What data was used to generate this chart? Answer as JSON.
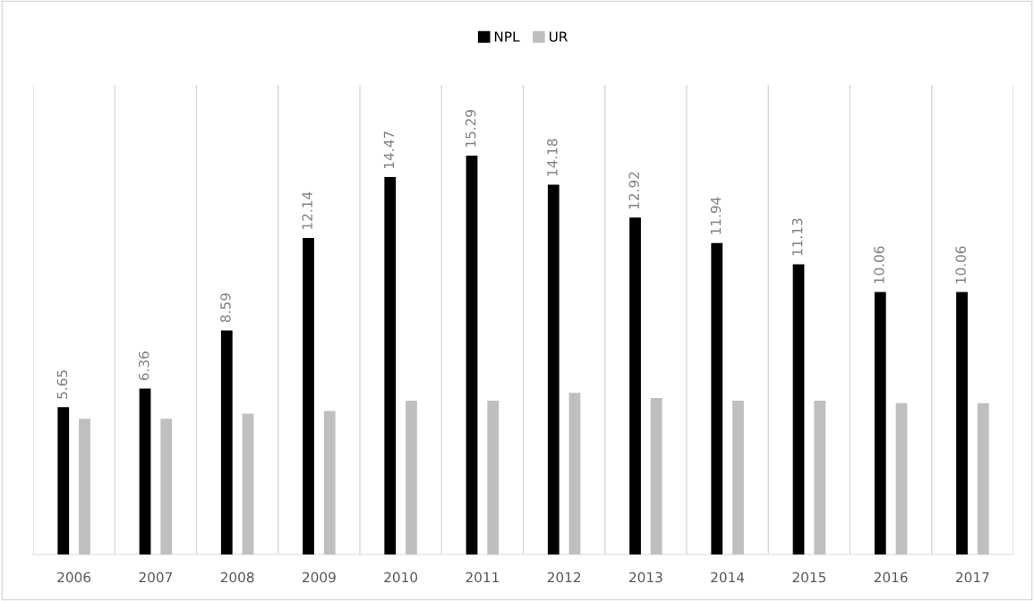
{
  "chart_data": {
    "type": "bar",
    "categories": [
      "2006",
      "2007",
      "2008",
      "2009",
      "2010",
      "2011",
      "2012",
      "2013",
      "2014",
      "2015",
      "2016",
      "2017"
    ],
    "series": [
      {
        "name": "NPL",
        "color": "#000000",
        "values": [
          5.65,
          6.36,
          8.59,
          12.14,
          14.47,
          15.29,
          14.18,
          12.92,
          11.94,
          11.13,
          10.06,
          10.06
        ],
        "value_labels": [
          "5.65",
          "6.36",
          "8.59",
          "12.14",
          "14.47",
          "15.29",
          "14.18",
          "12.92",
          "11.94",
          "11.13",
          "10.06",
          "10.06"
        ]
      },
      {
        "name": "UR",
        "color": "#bfbfbf",
        "values": [
          5.2,
          5.2,
          5.4,
          5.5,
          5.9,
          5.9,
          6.2,
          6.0,
          5.9,
          5.9,
          5.8,
          5.8
        ]
      }
    ],
    "ylim": [
      0,
      18
    ],
    "tick_labels": "x",
    "grid": "x",
    "legend": "top"
  }
}
